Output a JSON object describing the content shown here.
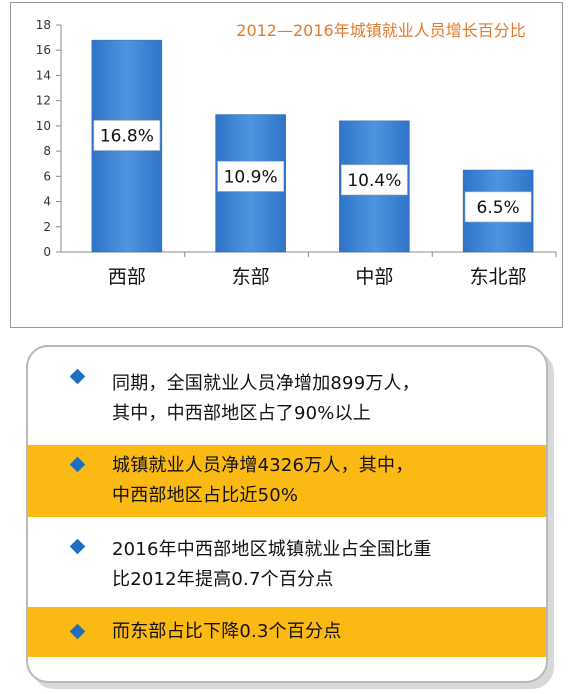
{
  "chart_data": {
    "type": "bar",
    "title": "2012—2016年城镇就业人员增长百分比",
    "categories": [
      "西部",
      "东部",
      "中部",
      "东北部"
    ],
    "values": [
      16.8,
      10.9,
      10.4,
      6.5
    ],
    "data_labels": [
      "16.8%",
      "10.9%",
      "10.4%",
      "6.5%"
    ],
    "ylim": [
      0,
      18
    ],
    "yticks": [
      0,
      2,
      4,
      6,
      8,
      10,
      12,
      14,
      16,
      18
    ],
    "bar_color": "#3f87d6",
    "bar_color_dark": "#2a66b5",
    "title_color": "#e07a2e",
    "grid": false
  },
  "info": {
    "accent": "#fbb913",
    "bullet_color": "#1f6fc0",
    "items": [
      {
        "lines": [
          "同期，全国就业人员净增加899万人，",
          "其中，中西部地区占了90%以上"
        ],
        "highlight": false
      },
      {
        "lines": [
          "城镇就业人员净增4326万人，其中，",
          "中西部地区占比近50%"
        ],
        "highlight": true
      },
      {
        "lines": [
          "2016年中西部地区城镇就业占全国比重",
          "比2012年提高0.7个百分点"
        ],
        "highlight": false
      },
      {
        "lines": [
          "而东部占比下降0.3个百分点"
        ],
        "highlight": true
      }
    ]
  }
}
